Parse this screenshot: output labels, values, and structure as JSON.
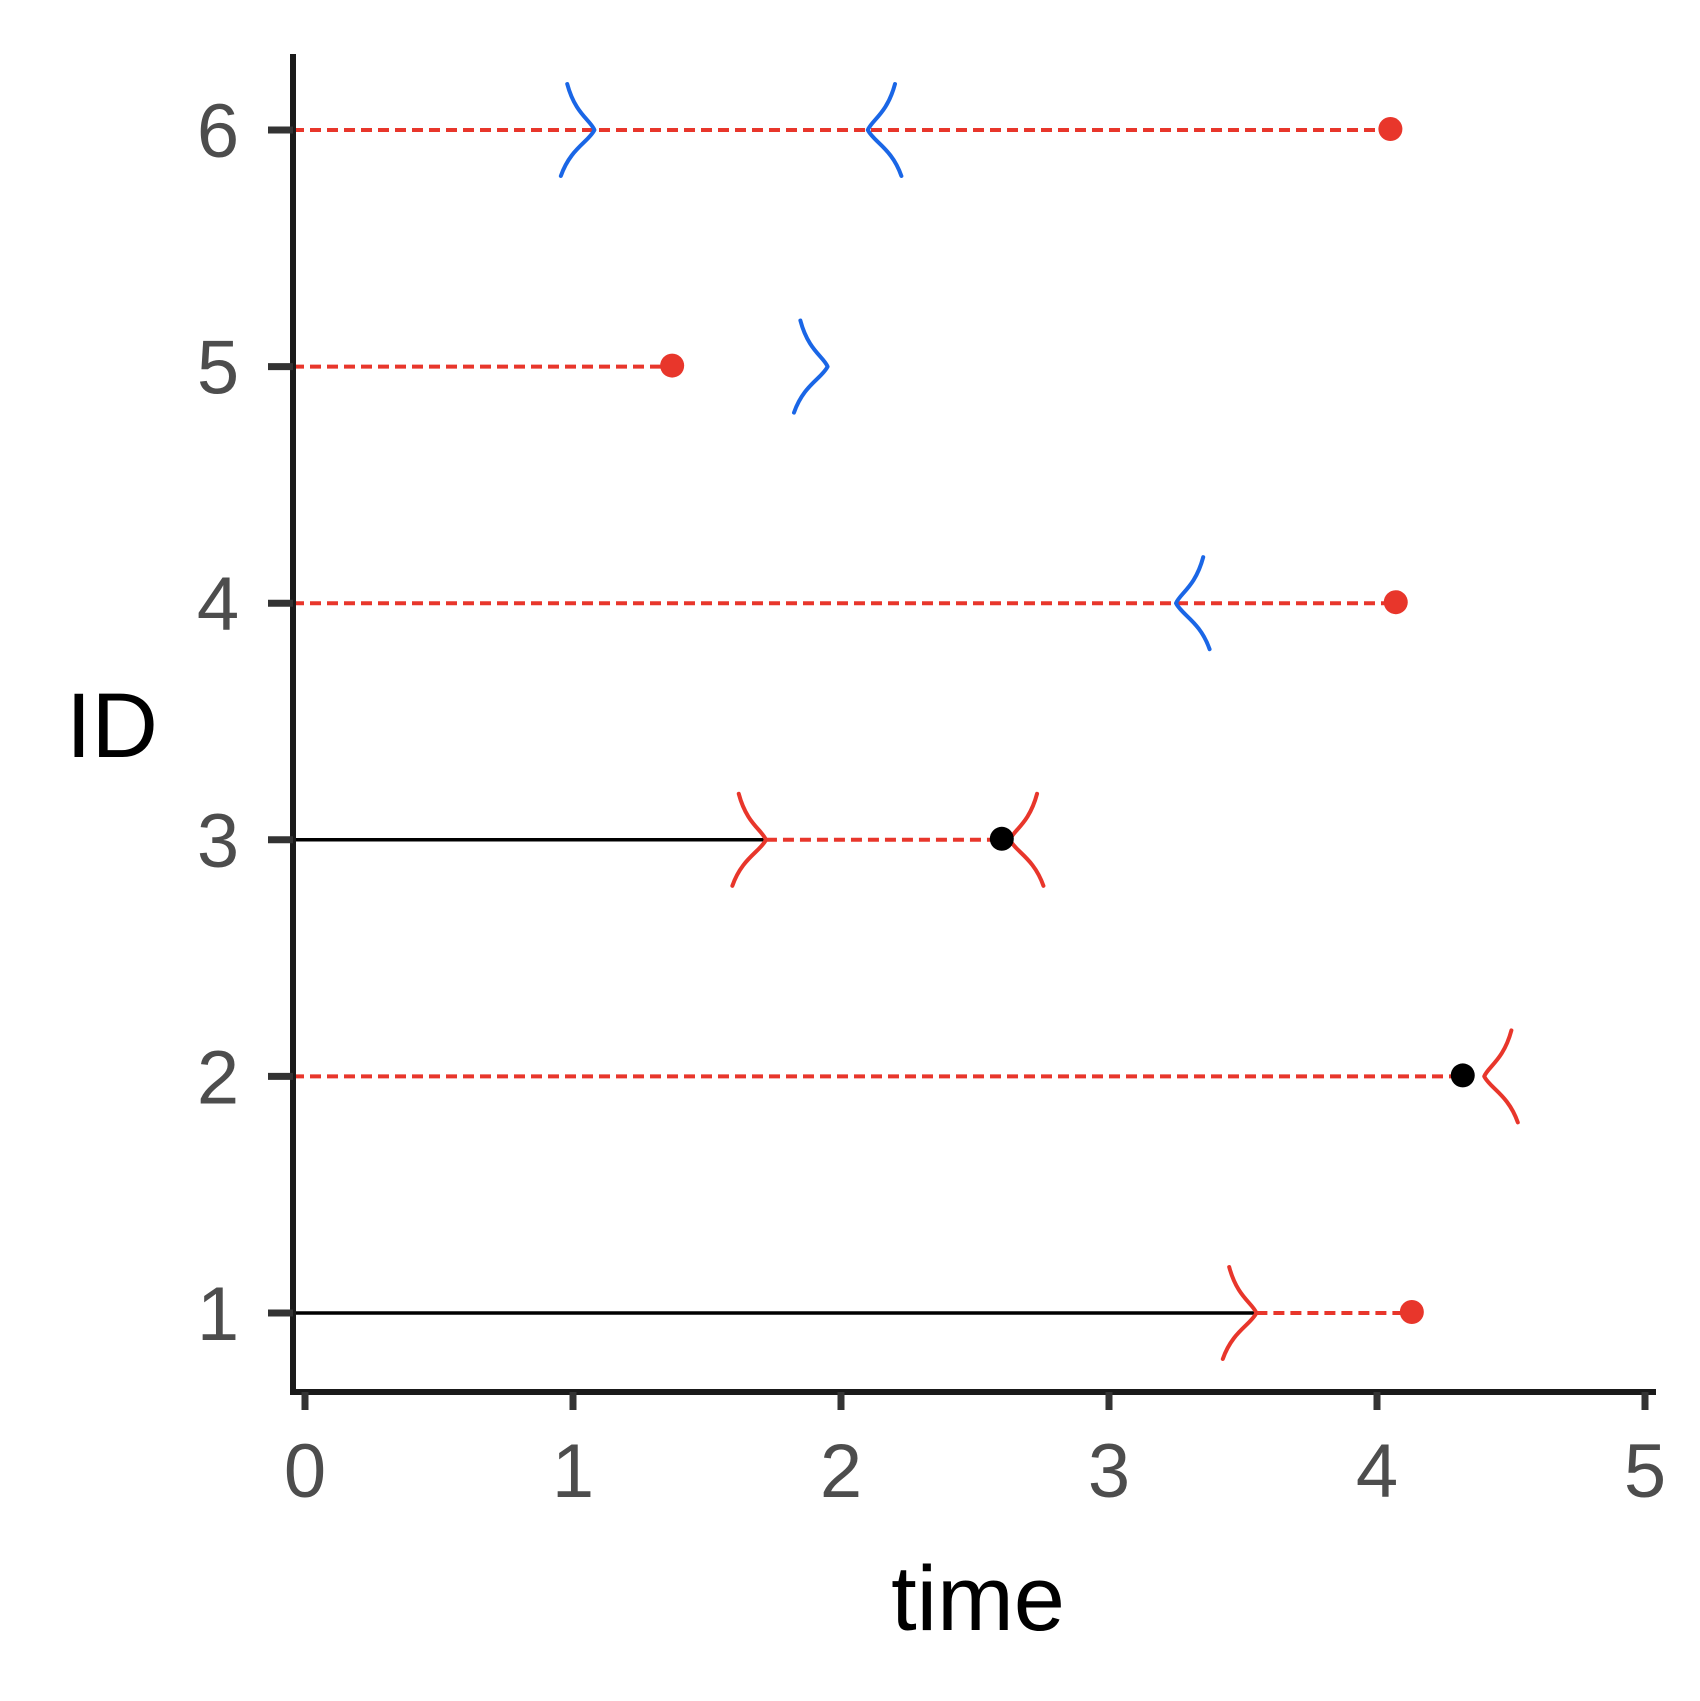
{
  "chart_data": {
    "type": "timeline",
    "xlabel": "time",
    "ylabel": "ID",
    "xlim": [
      0,
      5
    ],
    "ylim": [
      1,
      6
    ],
    "x_ticks": [
      "0",
      "1",
      "2",
      "3",
      "4",
      "5"
    ],
    "y_ticks": [
      "1",
      "2",
      "3",
      "4",
      "5",
      "6"
    ],
    "grid": false,
    "legend": "none",
    "colors": {
      "observed": "#000000",
      "unobserved": "#e8362b",
      "left_censor": "#1a66e6",
      "event_observed": "#000000",
      "event_unobserved": "#e8362b",
      "axis": "#1a1a1a",
      "tick_label": "#4d4d4d"
    },
    "subjects": [
      {
        "id": 6,
        "segments": [
          {
            "style": "dashed",
            "color": "red",
            "from": 0,
            "to": 4.05
          }
        ],
        "brackets": [
          {
            "x": 1.08,
            "direction": "right",
            "color": "blue"
          },
          {
            "x": 2.1,
            "direction": "left",
            "color": "blue"
          }
        ],
        "event": {
          "x": 4.05,
          "color": "red"
        }
      },
      {
        "id": 5,
        "segments": [
          {
            "style": "dashed",
            "color": "red",
            "from": 0,
            "to": 1.37
          }
        ],
        "brackets": [
          {
            "x": 1.95,
            "direction": "right",
            "color": "blue"
          }
        ],
        "event": {
          "x": 1.37,
          "color": "red"
        }
      },
      {
        "id": 4,
        "segments": [
          {
            "style": "dashed",
            "color": "red",
            "from": 0,
            "to": 4.07
          }
        ],
        "brackets": [
          {
            "x": 3.25,
            "direction": "left",
            "color": "blue"
          }
        ],
        "event": {
          "x": 4.07,
          "color": "red"
        }
      },
      {
        "id": 3,
        "segments": [
          {
            "style": "solid",
            "color": "black",
            "from": 0,
            "to": 1.72
          },
          {
            "style": "dashed",
            "color": "red",
            "from": 1.72,
            "to": 2.6
          }
        ],
        "brackets": [
          {
            "x": 1.72,
            "direction": "right",
            "color": "red"
          },
          {
            "x": 2.63,
            "direction": "left",
            "color": "red"
          }
        ],
        "event": {
          "x": 2.6,
          "color": "black"
        }
      },
      {
        "id": 2,
        "segments": [
          {
            "style": "dashed",
            "color": "red",
            "from": 0,
            "to": 4.32
          }
        ],
        "brackets": [
          {
            "x": 4.4,
            "direction": "left",
            "color": "red"
          }
        ],
        "event": {
          "x": 4.32,
          "color": "black"
        }
      },
      {
        "id": 1,
        "segments": [
          {
            "style": "solid",
            "color": "black",
            "from": 0,
            "to": 3.55
          },
          {
            "style": "dashed",
            "color": "red",
            "from": 3.55,
            "to": 4.13
          }
        ],
        "brackets": [
          {
            "x": 3.55,
            "direction": "right",
            "color": "red"
          }
        ],
        "event": {
          "x": 4.13,
          "color": "red"
        }
      }
    ]
  }
}
